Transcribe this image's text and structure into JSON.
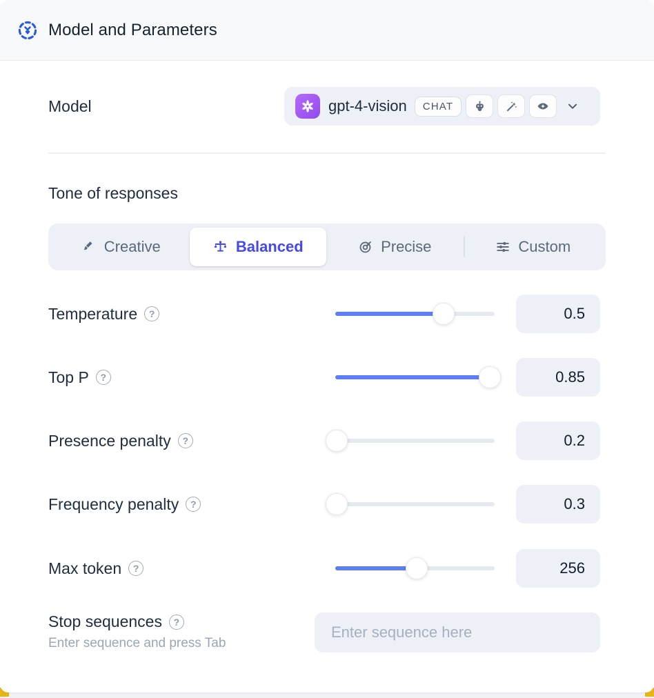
{
  "header": {
    "title": "Model and Parameters"
  },
  "model": {
    "label": "Model",
    "selected_model": "gpt-4-vision",
    "type_badge": "CHAT",
    "capabilities": [
      "assistant-robot",
      "magic-wand",
      "vision-eye"
    ]
  },
  "tone": {
    "heading": "Tone of responses",
    "tabs": [
      {
        "label": "Creative",
        "icon": "paintbrush-icon",
        "selected": false
      },
      {
        "label": "Balanced",
        "icon": "balance-scale-icon",
        "selected": true
      },
      {
        "label": "Precise",
        "icon": "target-icon",
        "selected": false
      },
      {
        "label": "Custom",
        "icon": "sliders-icon",
        "selected": false
      }
    ]
  },
  "parameters": [
    {
      "label": "Temperature",
      "value": "0.5",
      "fill_pct": 68
    },
    {
      "label": "Top P",
      "value": "0.85",
      "fill_pct": 97
    },
    {
      "label": "Presence penalty",
      "value": "0.2",
      "fill_pct": 1
    },
    {
      "label": "Frequency penalty",
      "value": "0.3",
      "fill_pct": 1
    },
    {
      "label": "Max token",
      "value": "256",
      "fill_pct": 51
    }
  ],
  "stop_sequences": {
    "label": "Stop sequences",
    "hint": "Enter sequence and press Tab",
    "placeholder": "Enter sequence here"
  },
  "help_glyph": "?",
  "colors": {
    "accent_blue": "#5c7ef6",
    "selected_tab_indigo": "#4549e8",
    "header_icon_blue": "#2b59e0",
    "openai_purple": "#9249f0",
    "accent_yellow": "#e8b515"
  }
}
